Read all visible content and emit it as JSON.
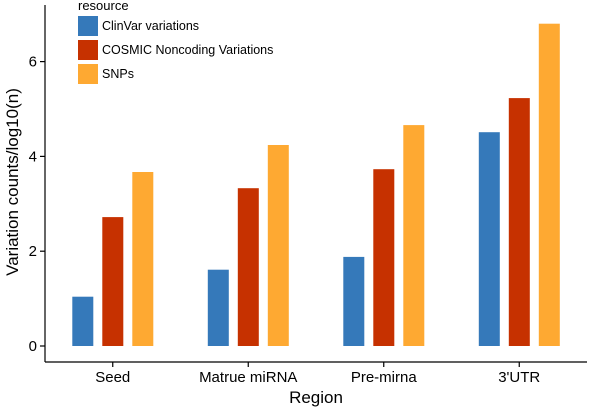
{
  "chart_data": {
    "type": "bar",
    "title": "",
    "xlabel": "Region",
    "ylabel": "Variation counts/log10(n)",
    "categories": [
      "Seed",
      "Matrue miRNA",
      "Pre-mirna",
      "3'UTR"
    ],
    "series": [
      {
        "name": "ClinVar variations",
        "color": "#3579BA",
        "values": [
          1.04,
          1.61,
          1.88,
          4.51
        ]
      },
      {
        "name": "COSMIC Noncoding Variations",
        "color": "#C63100",
        "values": [
          2.72,
          3.33,
          3.73,
          5.23
        ]
      },
      {
        "name": "SNPs",
        "color": "#FEA932",
        "values": [
          3.67,
          4.24,
          4.66,
          6.8
        ]
      }
    ],
    "yticks": [
      0,
      2,
      4,
      6
    ],
    "ylim": [
      -0.2,
      7.1
    ],
    "grid": false,
    "legend": {
      "title": "resource",
      "position": "top-left"
    }
  }
}
